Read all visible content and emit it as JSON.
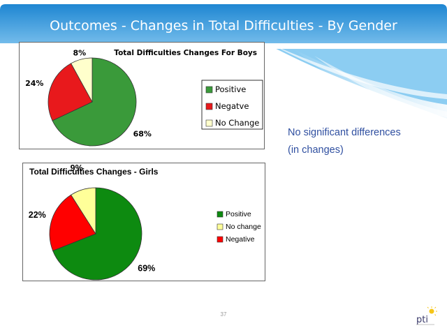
{
  "slide": {
    "title": "Outcomes - Changes in Total Difficulties - By Gender",
    "note_line1": "No significant differences",
    "note_line2": "(in changes)",
    "page_number": "37",
    "logo_text": "pti"
  },
  "colors": {
    "header_top": "#1e86d2",
    "header_bottom": "#7fc3ee",
    "note_text": "#2f4fa0"
  },
  "chart_data": [
    {
      "type": "pie",
      "title": "Total Difficulties Changes For Boys",
      "legend_placement": "right",
      "slices": [
        {
          "name": "Positive",
          "value": 68,
          "label": "68%",
          "color": "#3a9a3a"
        },
        {
          "name": "Negatve",
          "value": 24,
          "label": "24%",
          "color": "#e8191c"
        },
        {
          "name": "No Change",
          "value": 8,
          "label": "8%",
          "color": "#ffffcc"
        }
      ]
    },
    {
      "type": "pie",
      "title": "Total Difficulties Changes - Girls",
      "legend_placement": "right",
      "slices": [
        {
          "name": "Positive",
          "value": 69,
          "label": "69%",
          "color": "#0d8a10"
        },
        {
          "name": "Negative",
          "value": 22,
          "label": "22%",
          "color": "#ff0000"
        },
        {
          "name": "No change",
          "value": 9,
          "label": "9%",
          "color": "#ffff99"
        }
      ],
      "legend_order": [
        "Positive",
        "No change",
        "Negative"
      ]
    }
  ]
}
